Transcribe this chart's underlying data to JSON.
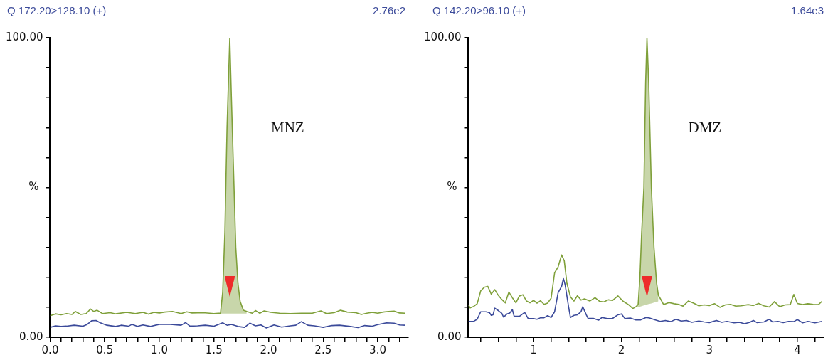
{
  "chart_data": [
    {
      "type": "line",
      "title": "Q 172.20>128.10 (+)",
      "subtitle": "2.76e2",
      "ylabel": "%",
      "annotations": [
        "MNZ"
      ],
      "xlim": [
        0,
        3.28
      ],
      "ylim": [
        0,
        100
      ],
      "xticks": [
        {
          "value": 0,
          "label": "0.0"
        },
        {
          "value": 0.1,
          "label": null
        },
        {
          "value": 0.2,
          "label": null
        },
        {
          "value": 0.3,
          "label": null
        },
        {
          "value": 0.4,
          "label": null
        },
        {
          "value": 0.5,
          "label": "0.5"
        },
        {
          "value": 0.6,
          "label": null
        },
        {
          "value": 0.7,
          "label": null
        },
        {
          "value": 0.8,
          "label": null
        },
        {
          "value": 0.9,
          "label": null
        },
        {
          "value": 1.0,
          "label": "1.0"
        },
        {
          "value": 1.1,
          "label": null
        },
        {
          "value": 1.2,
          "label": null
        },
        {
          "value": 1.3,
          "label": null
        },
        {
          "value": 1.4,
          "label": null
        },
        {
          "value": 1.5,
          "label": "1.5"
        },
        {
          "value": 1.6,
          "label": null
        },
        {
          "value": 1.7,
          "label": null
        },
        {
          "value": 1.8,
          "label": null
        },
        {
          "value": 1.9,
          "label": null
        },
        {
          "value": 2.0,
          "label": "2.0"
        },
        {
          "value": 2.1,
          "label": null
        },
        {
          "value": 2.2,
          "label": null
        },
        {
          "value": 2.3,
          "label": null
        },
        {
          "value": 2.4,
          "label": null
        },
        {
          "value": 2.5,
          "label": "2.5"
        },
        {
          "value": 2.6,
          "label": null
        },
        {
          "value": 2.7,
          "label": null
        },
        {
          "value": 2.8,
          "label": null
        },
        {
          "value": 2.9,
          "label": null
        },
        {
          "value": 3.0,
          "label": "3.0"
        },
        {
          "value": 3.1,
          "label": null
        },
        {
          "value": 3.2,
          "label": null
        }
      ],
      "yticks": [
        {
          "value": 0,
          "label": "0.00"
        },
        {
          "value": 10,
          "label": null
        },
        {
          "value": 20,
          "label": null
        },
        {
          "value": 30,
          "label": null
        },
        {
          "value": 40,
          "label": null
        },
        {
          "value": 50,
          "label": null
        },
        {
          "value": 60,
          "label": null
        },
        {
          "value": 70,
          "label": null
        },
        {
          "value": 80,
          "label": null
        },
        {
          "value": 90,
          "label": null
        },
        {
          "value": 100,
          "label": "100.00"
        }
      ],
      "series": [
        {
          "type": "line",
          "color": "#7fa03a",
          "x": [
            0.0,
            0.05,
            0.1,
            0.15,
            0.2,
            0.23,
            0.28,
            0.33,
            0.37,
            0.4,
            0.43,
            0.48,
            0.55,
            0.6,
            0.7,
            0.78,
            0.85,
            0.9,
            0.95,
            1.0,
            1.05,
            1.12,
            1.2,
            1.25,
            1.3,
            1.4,
            1.5,
            1.54,
            1.56,
            1.58,
            1.6,
            1.62,
            1.645,
            1.66,
            1.68,
            1.7,
            1.72,
            1.74,
            1.77,
            1.8,
            1.85,
            1.88,
            1.92,
            1.96,
            2.02,
            2.1,
            2.2,
            2.3,
            2.4,
            2.48,
            2.53,
            2.6,
            2.66,
            2.72,
            2.8,
            2.85,
            2.9,
            2.95,
            3.0,
            3.05,
            3.1,
            3.15,
            3.2,
            3.25
          ],
          "values": [
            7.2,
            7.8,
            7.5,
            7.9,
            7.6,
            8.6,
            7.6,
            7.9,
            9.4,
            8.6,
            9.0,
            7.9,
            8.2,
            7.8,
            8.3,
            7.9,
            8.3,
            7.7,
            8.3,
            8.1,
            8.4,
            8.6,
            7.9,
            8.5,
            8.1,
            8.2,
            7.9,
            8.0,
            8.0,
            15,
            35,
            70,
            100,
            80,
            55,
            30,
            18,
            12,
            9,
            8.6,
            8.0,
            8.9,
            8.0,
            8.8,
            8.3,
            8.0,
            7.9,
            8.0,
            8.0,
            8.8,
            7.9,
            8.2,
            9.0,
            8.4,
            8.2,
            7.6,
            8.0,
            8.3,
            8.0,
            8.4,
            8.6,
            8.7,
            8.1,
            8.0
          ],
          "lower": [
            null,
            null,
            null,
            null,
            null,
            null,
            null,
            null,
            null,
            null,
            null,
            null,
            null,
            null,
            null,
            null,
            null,
            null,
            null,
            null,
            null,
            null,
            null,
            null,
            null,
            null,
            null,
            7.9,
            7.9,
            7.9,
            7.9,
            7.9,
            7.9,
            7.9,
            7.9,
            7.9,
            7.9,
            7.9,
            7.9,
            7.9,
            null,
            null,
            null,
            null,
            null,
            null,
            null,
            null,
            null,
            null,
            null,
            null,
            null,
            null,
            null,
            null,
            null,
            null,
            null,
            null,
            null,
            null,
            null,
            null
          ],
          "upper": [
            null,
            null,
            null,
            null,
            null,
            null,
            null,
            null,
            null,
            null,
            null,
            null,
            null,
            null,
            null,
            null,
            null,
            null,
            null,
            null,
            null,
            null,
            null,
            null,
            null,
            null,
            null,
            8.0,
            8.0,
            15,
            35,
            70,
            100,
            80,
            55,
            30,
            18,
            12,
            9,
            8.6,
            null,
            null,
            null,
            null,
            null,
            null,
            null,
            null,
            null,
            null,
            null,
            null,
            null,
            null,
            null,
            null,
            null,
            null,
            null,
            null,
            null,
            null,
            null,
            null
          ]
        },
        {
          "type": "line",
          "color": "#3b4a9a",
          "x": [
            0.0,
            0.05,
            0.1,
            0.15,
            0.22,
            0.3,
            0.34,
            0.38,
            0.42,
            0.46,
            0.52,
            0.6,
            0.65,
            0.72,
            0.75,
            0.8,
            0.85,
            0.92,
            1.0,
            1.1,
            1.2,
            1.24,
            1.28,
            1.35,
            1.42,
            1.5,
            1.58,
            1.62,
            1.66,
            1.72,
            1.78,
            1.83,
            1.88,
            1.93,
            1.98,
            2.05,
            2.12,
            2.2,
            2.25,
            2.3,
            2.36,
            2.42,
            2.5,
            2.58,
            2.65,
            2.75,
            2.82,
            2.88,
            2.95,
            3.0,
            3.08,
            3.15,
            3.2,
            3.25
          ],
          "values": [
            3.3,
            3.8,
            3.6,
            3.7,
            4.0,
            3.7,
            4.3,
            5.5,
            5.6,
            4.8,
            4.0,
            3.6,
            4.0,
            3.7,
            4.3,
            3.6,
            4.1,
            3.6,
            4.3,
            4.3,
            4.0,
            4.9,
            3.7,
            3.8,
            4.0,
            3.7,
            4.8,
            4.0,
            4.3,
            3.6,
            3.3,
            4.7,
            3.8,
            4.1,
            3.1,
            4.1,
            3.4,
            3.8,
            4.0,
            5.2,
            4.0,
            3.8,
            3.3,
            3.9,
            4.0,
            3.6,
            3.2,
            3.9,
            3.7,
            4.2,
            4.8,
            4.7,
            4.1,
            4.0
          ]
        }
      ]
    },
    {
      "type": "line",
      "title": "Q 142.20>96.10 (+)",
      "subtitle": "1.64e3",
      "ylabel": "%",
      "annotations": [
        "DMZ"
      ],
      "xlim": [
        0.26,
        4.3
      ],
      "ylim": [
        0,
        100
      ],
      "xticks": [
        {
          "value": 0.4,
          "label": null
        },
        {
          "value": 0.6,
          "label": null
        },
        {
          "value": 0.8,
          "label": null
        },
        1,
        {
          "value": 1.2,
          "label": null
        },
        {
          "value": 1.4,
          "label": null
        },
        {
          "value": 1.6,
          "label": null
        },
        {
          "value": 1.8,
          "label": null
        },
        2,
        {
          "value": 2.2,
          "label": null
        },
        {
          "value": 2.4,
          "label": null
        },
        {
          "value": 2.6,
          "label": null
        },
        {
          "value": 2.8,
          "label": null
        },
        3,
        {
          "value": 3.2,
          "label": null
        },
        {
          "value": 3.4,
          "label": null
        },
        {
          "value": 3.6,
          "label": null
        },
        {
          "value": 3.8,
          "label": null
        },
        4,
        {
          "value": 4.2,
          "label": null
        }
      ],
      "yticks": [
        {
          "value": 0,
          "label": "0.00"
        },
        {
          "value": 10,
          "label": null
        },
        {
          "value": 20,
          "label": null
        },
        {
          "value": 30,
          "label": null
        },
        {
          "value": 40,
          "label": null
        },
        {
          "value": 50,
          "label": null
        },
        {
          "value": 60,
          "label": null
        },
        {
          "value": 70,
          "label": null
        },
        {
          "value": 80,
          "label": null
        },
        {
          "value": 90,
          "label": null
        },
        {
          "value": 100,
          "label": "100.00"
        }
      ],
      "series": [
        {
          "type": "line",
          "color": "#7fa03a",
          "x": [
            0.26,
            0.28,
            0.32,
            0.36,
            0.4,
            0.44,
            0.48,
            0.52,
            0.56,
            0.6,
            0.64,
            0.68,
            0.72,
            0.76,
            0.8,
            0.84,
            0.88,
            0.92,
            0.96,
            1.0,
            1.04,
            1.08,
            1.12,
            1.16,
            1.2,
            1.24,
            1.28,
            1.32,
            1.35,
            1.38,
            1.42,
            1.46,
            1.5,
            1.54,
            1.58,
            1.64,
            1.7,
            1.75,
            1.8,
            1.85,
            1.9,
            1.96,
            2.02,
            2.08,
            2.13,
            2.17,
            2.19,
            2.21,
            2.23,
            2.255,
            2.275,
            2.29,
            2.31,
            2.34,
            2.37,
            2.4,
            2.42,
            2.44,
            2.48,
            2.54,
            2.6,
            2.65,
            2.7,
            2.76,
            2.82,
            2.88,
            2.94,
            3.0,
            3.06,
            3.12,
            3.18,
            3.24,
            3.3,
            3.36,
            3.44,
            3.5,
            3.56,
            3.62,
            3.68,
            3.74,
            3.8,
            3.86,
            3.92,
            3.96,
            4.0,
            4.06,
            4.12,
            4.18,
            4.24,
            4.28
          ],
          "values": [
            10.8,
            9.8,
            10.3,
            11.2,
            15.5,
            16.7,
            17.0,
            14.4,
            15.9,
            14.0,
            12.6,
            11.5,
            15.1,
            13.2,
            11.5,
            13.8,
            14.2,
            12.1,
            11.5,
            12.3,
            11.4,
            12.2,
            11.0,
            11.4,
            13.0,
            21.5,
            23.5,
            27.5,
            25.5,
            18.0,
            13.5,
            12.1,
            13.9,
            12.4,
            12.8,
            12.1,
            13.2,
            12.0,
            11.8,
            12.5,
            12.3,
            13.8,
            12.0,
            10.9,
            9.6,
            10.3,
            11,
            20,
            35,
            50,
            85,
            100,
            85,
            50,
            30,
            18,
            14,
            13.0,
            10.9,
            11.6,
            11.2,
            11.0,
            10.4,
            12.1,
            11.4,
            10.5,
            10.8,
            10.6,
            11.2,
            10.0,
            10.8,
            11.0,
            10.4,
            10.5,
            10.9,
            10.6,
            11.3,
            10.5,
            10.1,
            11.9,
            10.2,
            10.8,
            10.9,
            14.3,
            11.3,
            10.9,
            11.2,
            11.0,
            10.9,
            12.0
          ],
          "lower": [
            null,
            null,
            null,
            null,
            null,
            null,
            null,
            null,
            null,
            null,
            null,
            null,
            null,
            null,
            null,
            null,
            null,
            null,
            null,
            null,
            null,
            null,
            null,
            null,
            null,
            null,
            null,
            null,
            null,
            null,
            null,
            null,
            null,
            null,
            null,
            null,
            null,
            null,
            null,
            null,
            null,
            null,
            null,
            null,
            null,
            10.0,
            10.1,
            10.2,
            10.4,
            10.6,
            10.8,
            10.9,
            11.1,
            11.3,
            11.6,
            11.8,
            12.0,
            null,
            null,
            null,
            null,
            null,
            null,
            null,
            null,
            null,
            null,
            null,
            null,
            null,
            null,
            null,
            null,
            null,
            null,
            null,
            null,
            null,
            null,
            null,
            null,
            null,
            null,
            null,
            null,
            null,
            null,
            null,
            null,
            null
          ],
          "upper": [
            null,
            null,
            null,
            null,
            null,
            null,
            null,
            null,
            null,
            null,
            null,
            null,
            null,
            null,
            null,
            null,
            null,
            null,
            null,
            null,
            null,
            null,
            null,
            null,
            null,
            null,
            null,
            null,
            null,
            null,
            null,
            null,
            null,
            null,
            null,
            null,
            null,
            null,
            null,
            null,
            null,
            null,
            null,
            null,
            null,
            10.3,
            11,
            20,
            35,
            50,
            85,
            100,
            85,
            50,
            30,
            18,
            14,
            null,
            null,
            null,
            null,
            null,
            null,
            null,
            null,
            null,
            null,
            null,
            null,
            null,
            null,
            null,
            null,
            null,
            null,
            null,
            null,
            null,
            null,
            null,
            null,
            null,
            null,
            null,
            null,
            null,
            null,
            null,
            null,
            null
          ]
        },
        {
          "type": "line",
          "color": "#3b4a9a",
          "x": [
            0.26,
            0.32,
            0.36,
            0.4,
            0.46,
            0.5,
            0.52,
            0.54,
            0.56,
            0.6,
            0.64,
            0.66,
            0.7,
            0.73,
            0.76,
            0.78,
            0.84,
            0.9,
            0.94,
            1.0,
            1.04,
            1.08,
            1.12,
            1.16,
            1.2,
            1.24,
            1.28,
            1.32,
            1.34,
            1.36,
            1.4,
            1.42,
            1.46,
            1.5,
            1.54,
            1.56,
            1.6,
            1.62,
            1.68,
            1.74,
            1.78,
            1.84,
            1.9,
            1.96,
            2.0,
            2.04,
            2.1,
            2.16,
            2.22,
            2.28,
            2.32,
            2.38,
            2.44,
            2.5,
            2.56,
            2.62,
            2.68,
            2.74,
            2.8,
            2.88,
            2.94,
            3.0,
            3.08,
            3.14,
            3.2,
            3.28,
            3.34,
            3.4,
            3.46,
            3.5,
            3.54,
            3.62,
            3.68,
            3.72,
            3.78,
            3.84,
            3.9,
            3.96,
            4.0,
            4.06,
            4.12,
            4.2,
            4.28
          ],
          "values": [
            5.3,
            5.3,
            6.0,
            8.5,
            8.5,
            8.2,
            7.3,
            7.5,
            9.7,
            8.9,
            8.0,
            6.7,
            7.8,
            8.1,
            9.2,
            7.0,
            7.0,
            8.3,
            6.2,
            6.2,
            6.0,
            6.5,
            6.5,
            7.2,
            6.6,
            8.5,
            14.9,
            17.0,
            19.6,
            17.5,
            10.0,
            6.6,
            7.3,
            7.5,
            8.5,
            10.2,
            7.5,
            6.3,
            6.3,
            5.7,
            6.6,
            6.2,
            6.3,
            7.5,
            7.8,
            6.2,
            6.4,
            5.8,
            5.8,
            6.6,
            6.4,
            5.8,
            5.3,
            5.6,
            5.2,
            6.0,
            5.4,
            5.6,
            5.0,
            5.4,
            5.1,
            4.9,
            5.6,
            5.0,
            5.3,
            4.8,
            5.0,
            4.5,
            5.0,
            5.6,
            4.9,
            5.1,
            6.0,
            5.1,
            5.3,
            4.9,
            5.3,
            5.2,
            5.9,
            4.8,
            5.3,
            4.8,
            5.3
          ]
        }
      ]
    }
  ]
}
